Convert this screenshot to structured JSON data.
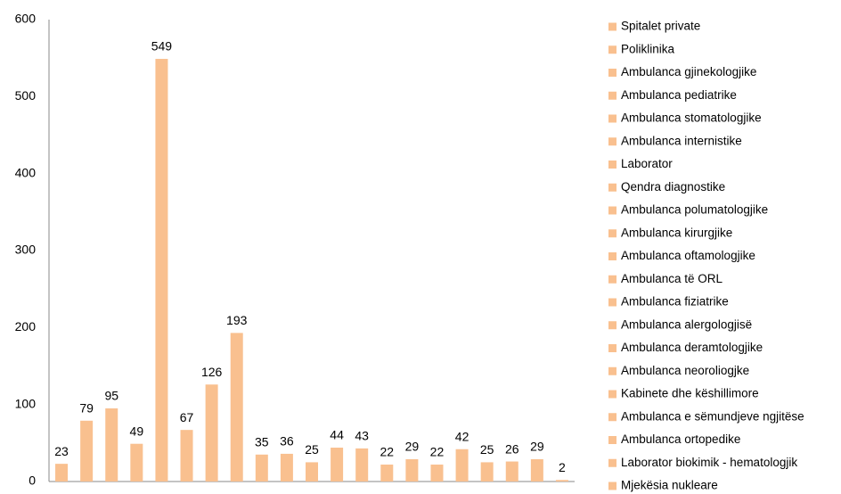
{
  "chart_data": {
    "type": "bar",
    "categories": [
      "Spitalet private",
      "Poliklinika",
      "Ambulanca  gjinekologjike",
      "Ambulanca  pediatrike",
      "Ambulanca stomatologjike",
      "Ambulanca internistike",
      "Laborator",
      "Qendra diagnostike",
      "Ambulanca polumatologjike",
      "Ambulanca kirurgjike",
      "Ambulanca oftamologjike",
      "Ambulanca të ORL",
      "Ambulanca  fiziatrike",
      "Ambulanca alergologjisë",
      "Ambulanca deramtologjike",
      "Ambulanca neoroliogjke",
      "Kabinete dhe këshillimore",
      "Ambulanca e sëmundjeve ngjitëse",
      "Ambulanca ortopedike",
      "Laborator biokimik - hematologjik",
      "Mjekësia nukleare"
    ],
    "values": [
      23,
      79,
      95,
      49,
      549,
      67,
      126,
      193,
      35,
      36,
      25,
      44,
      43,
      22,
      29,
      22,
      42,
      25,
      26,
      29,
      2
    ],
    "color": "#f9c08f",
    "ylim": [
      0,
      600
    ],
    "yticks": [
      0,
      100,
      200,
      300,
      400,
      500,
      600
    ],
    "grid": false,
    "legend": "right"
  }
}
